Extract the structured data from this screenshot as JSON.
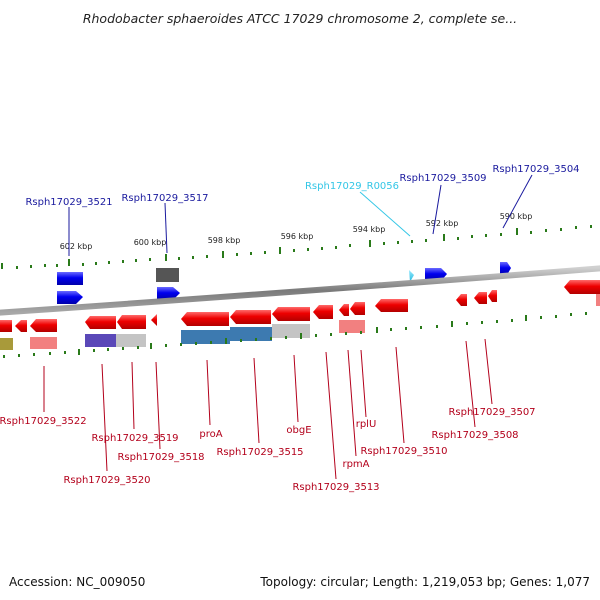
{
  "title": "Rhodobacter sphaeroides ATCC 17029 chromosome 2, complete se...",
  "footer": {
    "accession": "Accession: NC_009050",
    "summary": "Topology: circular; Length: 1,219,053 bp; Genes: 1,077"
  },
  "kbp_ticks": [
    "602 kbp",
    "600 kbp",
    "598 kbp",
    "596 kbp",
    "594 kbp",
    "592 kbp",
    "590 kbp"
  ],
  "top_labels": [
    {
      "text": "Rsph17029_3521",
      "color": "#1a1a9e"
    },
    {
      "text": "Rsph17029_3517",
      "color": "#1a1a9e"
    },
    {
      "text": "Rsph17029_R0056",
      "color": "#33c6e6"
    },
    {
      "text": "Rsph17029_3509",
      "color": "#1a1a9e"
    },
    {
      "text": "Rsph17029_3504",
      "color": "#1a1a9e"
    }
  ],
  "bottom_labels": [
    "Rsph17029_3522",
    "Rsph17029_3520",
    "Rsph17029_3519",
    "Rsph17029_3518",
    "proA",
    "Rsph17029_3515",
    "obgE",
    "Rsph17029_3513",
    "rpmA",
    "rplU",
    "Rsph17029_3510",
    "Rsph17029_3508",
    "Rsph17029_3507"
  ],
  "colors": {
    "forward_gene": "#0000e6",
    "reverse_gene": "#e60000",
    "rna_gene": "#33c6e6",
    "backbone": "#8a8a8a",
    "tick": "#2a7a1a",
    "top_label": "#1a1a9e",
    "bottom_label": "#b3001b"
  }
}
